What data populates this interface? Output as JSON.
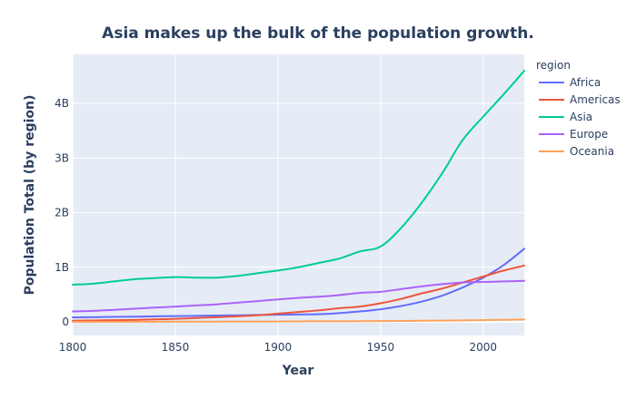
{
  "chart_data": {
    "type": "line",
    "title": "Asia makes up the bulk of the population growth.",
    "xlabel": "Year",
    "ylabel": "Population Total (by region)",
    "xlim": [
      1800,
      2020
    ],
    "ylim": [
      -0.25,
      4.9
    ],
    "x_ticks": [
      1800,
      1850,
      1900,
      1950,
      2000
    ],
    "y_ticks": [
      {
        "value": 0,
        "label": "0"
      },
      {
        "value": 1,
        "label": "1B"
      },
      {
        "value": 2,
        "label": "2B"
      },
      {
        "value": 3,
        "label": "3B"
      },
      {
        "value": 4,
        "label": "4B"
      }
    ],
    "grid": true,
    "legend": {
      "title": "region",
      "placement": "right"
    },
    "x": [
      1800,
      1810,
      1820,
      1830,
      1840,
      1850,
      1860,
      1870,
      1880,
      1890,
      1900,
      1910,
      1920,
      1930,
      1940,
      1950,
      1960,
      1970,
      1980,
      1990,
      2000,
      2010,
      2020
    ],
    "series": [
      {
        "name": "Africa",
        "color": "#636efa",
        "values": [
          0.08,
          0.085,
          0.09,
          0.095,
          0.1,
          0.105,
          0.11,
          0.115,
          0.12,
          0.125,
          0.13,
          0.135,
          0.14,
          0.16,
          0.19,
          0.23,
          0.29,
          0.37,
          0.48,
          0.63,
          0.81,
          1.04,
          1.34
        ]
      },
      {
        "name": "Americas",
        "color": "#ef553b",
        "values": [
          0.02,
          0.025,
          0.03,
          0.035,
          0.045,
          0.055,
          0.07,
          0.085,
          0.1,
          0.12,
          0.15,
          0.18,
          0.21,
          0.25,
          0.28,
          0.34,
          0.42,
          0.52,
          0.61,
          0.72,
          0.83,
          0.94,
          1.03
        ]
      },
      {
        "name": "Asia",
        "color": "#00cc96",
        "values": [
          0.68,
          0.7,
          0.74,
          0.78,
          0.8,
          0.82,
          0.81,
          0.81,
          0.84,
          0.89,
          0.94,
          1.0,
          1.08,
          1.16,
          1.29,
          1.38,
          1.72,
          2.18,
          2.72,
          3.33,
          3.76,
          4.17,
          4.6
        ]
      },
      {
        "name": "Europe",
        "color": "#ab63fa",
        "values": [
          0.19,
          0.2,
          0.22,
          0.24,
          0.26,
          0.28,
          0.3,
          0.32,
          0.35,
          0.38,
          0.41,
          0.44,
          0.46,
          0.49,
          0.53,
          0.55,
          0.6,
          0.65,
          0.69,
          0.72,
          0.73,
          0.74,
          0.75
        ]
      },
      {
        "name": "Oceania",
        "color": "#ffa15a",
        "values": [
          0.002,
          0.002,
          0.002,
          0.002,
          0.002,
          0.003,
          0.004,
          0.004,
          0.005,
          0.006,
          0.006,
          0.008,
          0.009,
          0.01,
          0.011,
          0.013,
          0.016,
          0.02,
          0.023,
          0.027,
          0.031,
          0.037,
          0.043
        ]
      }
    ]
  }
}
